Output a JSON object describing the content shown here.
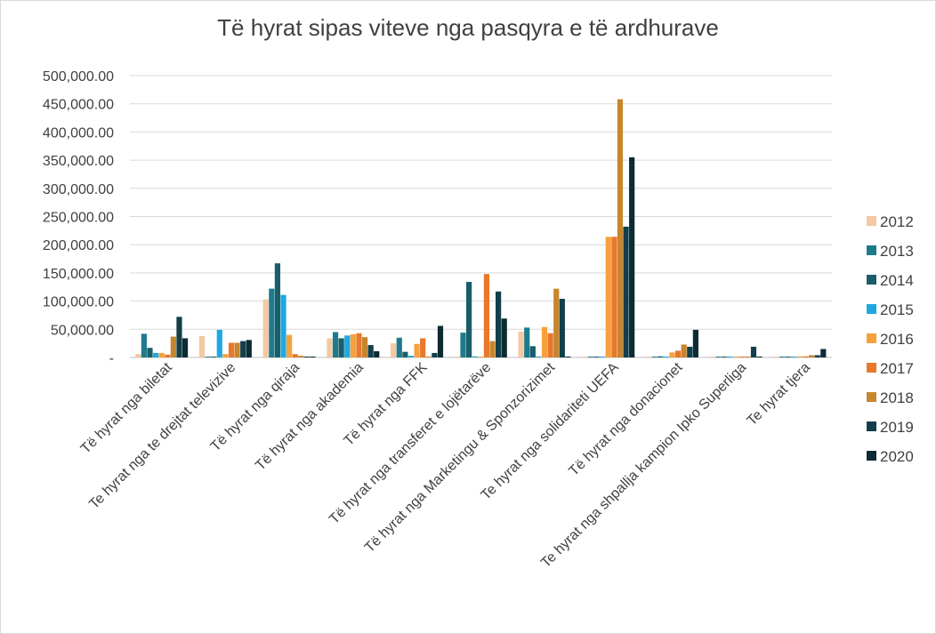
{
  "chart_data": {
    "type": "bar",
    "title": "Të hyrat sipas viteve nga pasqyra e të ardhurave",
    "xlabel": "",
    "ylabel": "",
    "ylim": [
      0,
      500000
    ],
    "yticks": [
      0,
      50000,
      100000,
      150000,
      200000,
      250000,
      300000,
      350000,
      400000,
      450000,
      500000
    ],
    "ytick_labels": [
      "-",
      "50,000.00",
      "100,000.00",
      "150,000.00",
      "200,000.00",
      "250,000.00",
      "300,000.00",
      "350,000.00",
      "400,000.00",
      "450,000.00",
      "500,000.00"
    ],
    "grid": true,
    "legend_position": "right",
    "categories": [
      "Të hyrat nga biletat",
      "Te hyrat nga te drejtat televizive",
      "Të hyrat nga qiraja",
      "Të hyrat nga akademia",
      "Të hyrat nga FFK",
      "Të hyrat nga transferet e lojëtarëve",
      "Të hyrat nga Marketingu & Sponzorizimet",
      "Te hyrat nga solidariteti UEFA",
      "Të hyrat nga donacionet",
      "Te hyrat nga shpallja kampion Ipko Superliga",
      "Te hyrat tjera"
    ],
    "series": [
      {
        "name": "2012",
        "color": "#f2c9a1",
        "values": [
          6000,
          38000,
          103000,
          34000,
          25000,
          1000,
          46000,
          1000,
          1000,
          1000,
          1000
        ]
      },
      {
        "name": "2013",
        "color": "#1f7a8c",
        "values": [
          42000,
          1000,
          122000,
          45000,
          35000,
          44000,
          53000,
          1000,
          1000,
          1000,
          1000
        ]
      },
      {
        "name": "2014",
        "color": "#1b5e6b",
        "values": [
          17000,
          1000,
          167000,
          34000,
          10000,
          134000,
          20000,
          1000,
          2000,
          1000,
          1000
        ]
      },
      {
        "name": "2015",
        "color": "#1fa8e0",
        "values": [
          8000,
          49000,
          111000,
          39000,
          3000,
          2000,
          1000,
          1000,
          1000,
          1000,
          1000
        ]
      },
      {
        "name": "2016",
        "color": "#f7a03c",
        "values": [
          8000,
          6000,
          40000,
          41000,
          24000,
          1000,
          54000,
          214000,
          9000,
          1000,
          2000
        ]
      },
      {
        "name": "2017",
        "color": "#e8782a",
        "values": [
          5000,
          26000,
          6000,
          43000,
          34000,
          148000,
          43000,
          214000,
          12000,
          1000,
          2000
        ]
      },
      {
        "name": "2018",
        "color": "#c7862e",
        "values": [
          37000,
          26000,
          3000,
          36000,
          1000,
          29000,
          122000,
          458000,
          23000,
          1000,
          4000
        ]
      },
      {
        "name": "2019",
        "color": "#123f4a",
        "values": [
          72000,
          29000,
          1000,
          22000,
          8000,
          117000,
          104000,
          232000,
          19000,
          19000,
          4000
        ]
      },
      {
        "name": "2020",
        "color": "#0c2b33",
        "values": [
          34000,
          31000,
          1000,
          11000,
          56000,
          69000,
          1000,
          355000,
          49000,
          1000,
          15000
        ]
      }
    ]
  }
}
